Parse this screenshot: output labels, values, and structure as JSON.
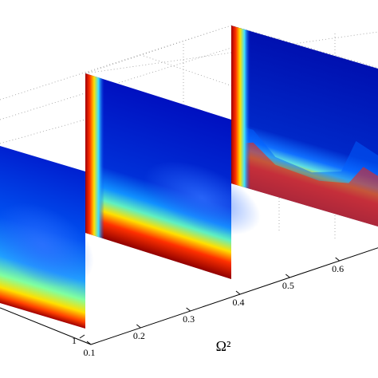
{
  "chart_data": {
    "type": "slice3d",
    "xlabel": "Ω²",
    "xlim": [
      0.1,
      0.7
    ],
    "xticks": [
      0.1,
      0.2,
      0.3,
      0.4,
      0.5,
      0.6
    ],
    "yticks": [
      1
    ]
  }
}
